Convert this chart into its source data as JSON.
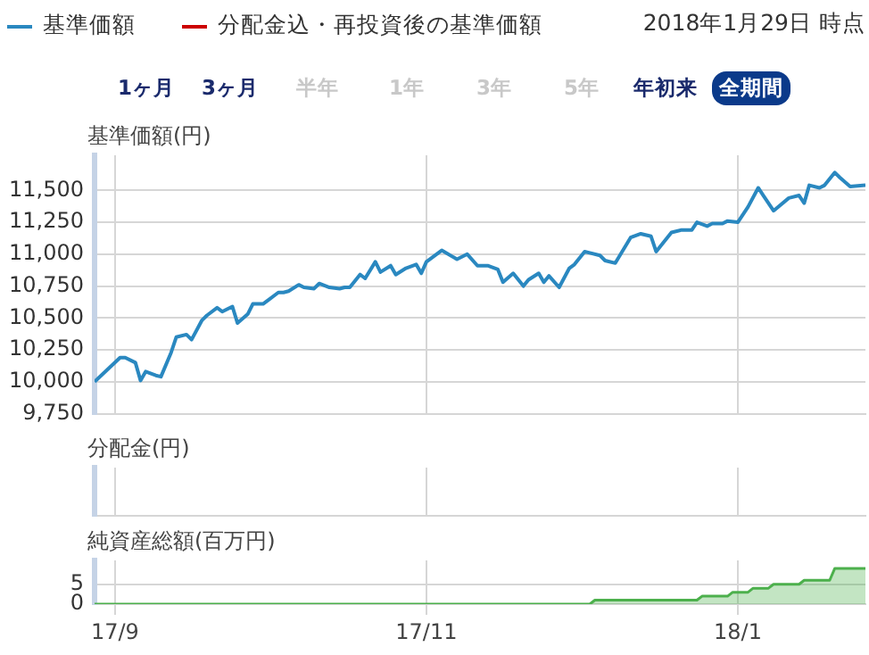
{
  "chart_data": [
    {
      "type": "line",
      "ylabel": "基準価額(円)",
      "legend": "top left",
      "grid": true,
      "tick_labels": "y",
      "annotations": [
        "2018年1月29日 時点",
        "1ヶ月",
        "3ヶ月",
        "半年",
        "1年",
        "3年",
        "5年",
        "年初来",
        "全期間"
      ],
      "xlim": [
        "2017-08-28",
        "2018-01-26"
      ],
      "xticks": [
        {
          "value": "2017-09-01",
          "label": null
        },
        {
          "value": "2017-11-01",
          "label": null
        },
        {
          "value": "2018-01-01",
          "label": null
        }
      ],
      "ylim": [
        9750,
        11775
      ],
      "yticks": [
        {
          "value": 9750,
          "label": "9,750"
        },
        {
          "value": 10000,
          "label": "10,000"
        },
        {
          "value": 10250,
          "label": "10,250"
        },
        {
          "value": 10500,
          "label": "10,500"
        },
        {
          "value": 10750,
          "label": "10,750"
        },
        {
          "value": 11000,
          "label": "11,000"
        },
        {
          "value": 11250,
          "label": "11,250"
        },
        {
          "value": 11500,
          "label": "11,500"
        }
      ],
      "x": [
        "2017-08-28",
        "2017-09-02",
        "2017-09-03",
        "2017-09-05",
        "2017-09-06",
        "2017-09-07",
        "2017-09-09",
        "2017-09-10",
        "2017-09-12",
        "2017-09-13",
        "2017-09-15",
        "2017-09-16",
        "2017-09-18",
        "2017-09-19",
        "2017-09-21",
        "2017-09-22",
        "2017-09-24",
        "2017-09-25",
        "2017-09-27",
        "2017-09-28",
        "2017-09-30",
        "2017-10-01",
        "2017-10-03",
        "2017-10-04",
        "2017-10-05",
        "2017-10-07",
        "2017-10-08",
        "2017-10-10",
        "2017-10-11",
        "2017-10-13",
        "2017-10-15",
        "2017-10-16",
        "2017-10-17",
        "2017-10-19",
        "2017-10-20",
        "2017-10-22",
        "2017-10-23",
        "2017-10-25",
        "2017-10-26",
        "2017-10-28",
        "2017-10-30",
        "2017-10-31",
        "2017-11-01",
        "2017-11-04",
        "2017-11-07",
        "2017-11-09",
        "2017-11-11",
        "2017-11-13",
        "2017-11-15",
        "2017-11-16",
        "2017-11-18",
        "2017-11-20",
        "2017-11-21",
        "2017-11-23",
        "2017-11-24",
        "2017-11-25",
        "2017-11-27",
        "2017-11-29",
        "2017-11-30",
        "2017-12-02",
        "2017-12-03",
        "2017-12-05",
        "2017-12-06",
        "2017-12-08",
        "2017-12-11",
        "2017-12-13",
        "2017-12-15",
        "2017-12-16",
        "2017-12-19",
        "2017-12-21",
        "2017-12-23",
        "2017-12-24",
        "2017-12-26",
        "2017-12-27",
        "2017-12-29",
        "2017-12-30",
        "2018-01-01",
        "2018-01-03",
        "2018-01-05",
        "2018-01-06",
        "2018-01-08",
        "2018-01-11",
        "2018-01-13",
        "2018-01-14",
        "2018-01-15",
        "2018-01-17",
        "2018-01-18",
        "2018-01-20",
        "2018-01-21",
        "2018-01-23",
        "2018-01-26"
      ],
      "series": [
        {
          "name": "基準価額",
          "color": "#2a88c0",
          "values": [
            10000,
            10190,
            10190,
            10150,
            10010,
            10080,
            10050,
            10040,
            10230,
            10350,
            10370,
            10330,
            10480,
            10520,
            10580,
            10550,
            10590,
            10460,
            10530,
            10610,
            10610,
            10640,
            10700,
            10700,
            10710,
            10760,
            10740,
            10730,
            10770,
            10740,
            10730,
            10740,
            10740,
            10840,
            10810,
            10940,
            10860,
            10910,
            10840,
            10890,
            10920,
            10850,
            10940,
            11030,
            10960,
            11000,
            10910,
            10910,
            10880,
            10780,
            10850,
            10750,
            10800,
            10850,
            10780,
            10830,
            10740,
            10890,
            10920,
            11020,
            11010,
            10990,
            10950,
            10930,
            11130,
            11160,
            11140,
            11020,
            11170,
            11190,
            11190,
            11250,
            11220,
            11240,
            11240,
            11260,
            11250,
            11370,
            11520,
            11460,
            11340,
            11440,
            11460,
            11400,
            11540,
            11520,
            11540,
            11640,
            11600,
            11530,
            11540
          ]
        },
        {
          "name": "分配金込・再投資後の基準価額",
          "color": "#cc0000",
          "values": [
            null,
            null,
            null,
            null,
            null,
            null,
            null,
            null,
            null,
            null,
            null,
            null,
            null,
            null,
            null,
            null,
            null,
            null,
            null,
            null,
            null,
            null,
            null,
            null,
            null,
            null,
            null,
            null,
            null,
            null,
            null,
            null,
            null,
            null,
            null,
            null,
            null,
            null,
            null,
            null,
            null,
            null,
            null,
            null,
            null,
            null,
            null,
            null,
            null,
            null,
            null,
            null,
            null,
            null,
            null,
            null,
            null,
            null,
            null,
            null,
            null,
            null,
            null,
            null,
            null,
            null,
            null,
            null,
            null,
            null,
            null,
            null,
            null,
            null,
            null,
            null,
            null,
            null,
            null,
            null,
            null,
            null,
            null,
            null,
            null,
            null,
            null,
            null,
            null,
            null,
            null
          ]
        }
      ]
    },
    {
      "type": "other",
      "ylabel": "分配金(円)"
    },
    {
      "type": "area",
      "ylabel": "純資産総額(百万円)",
      "grid": true,
      "xlim": [
        "2017-08-28",
        "2018-01-26"
      ],
      "xticks": [
        {
          "value": "2017-09-01",
          "label": "17/9"
        },
        {
          "value": "2017-11-01",
          "label": "17/11"
        },
        {
          "value": "2018-01-01",
          "label": "18/1"
        }
      ],
      "ylim": [
        0,
        11
      ],
      "yticks": [
        0,
        5
      ],
      "x": [
        "2017-08-28",
        "2017-12-03",
        "2017-12-04",
        "2017-12-24",
        "2017-12-25",
        "2017-12-30",
        "2017-12-31",
        "2018-01-03",
        "2018-01-04",
        "2018-01-07",
        "2018-01-08",
        "2018-01-13",
        "2018-01-14",
        "2018-01-19",
        "2018-01-20",
        "2018-01-26"
      ],
      "series": [
        {
          "color": "#4cb04c",
          "values": [
            0,
            0,
            1,
            1,
            2,
            2,
            3,
            3,
            4,
            4,
            5,
            5,
            6,
            6,
            9,
            9
          ]
        }
      ]
    }
  ]
}
